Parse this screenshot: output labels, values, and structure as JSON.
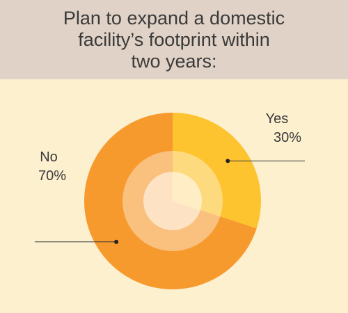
{
  "title_lines": [
    "Plan to expand a domestic",
    "facility’s footprint within",
    "two years:"
  ],
  "colors": {
    "yes": "#fec430",
    "no": "#f79a2e",
    "background": "#fdf0cf",
    "header": "#e0d2c6"
  },
  "chart_data": {
    "type": "pie",
    "title": "Plan to expand a domestic facility’s footprint within two years:",
    "slices": [
      {
        "label": "Yes",
        "value": 30,
        "value_label": "30%"
      },
      {
        "label": "No",
        "value": 70,
        "value_label": "70%"
      }
    ]
  }
}
